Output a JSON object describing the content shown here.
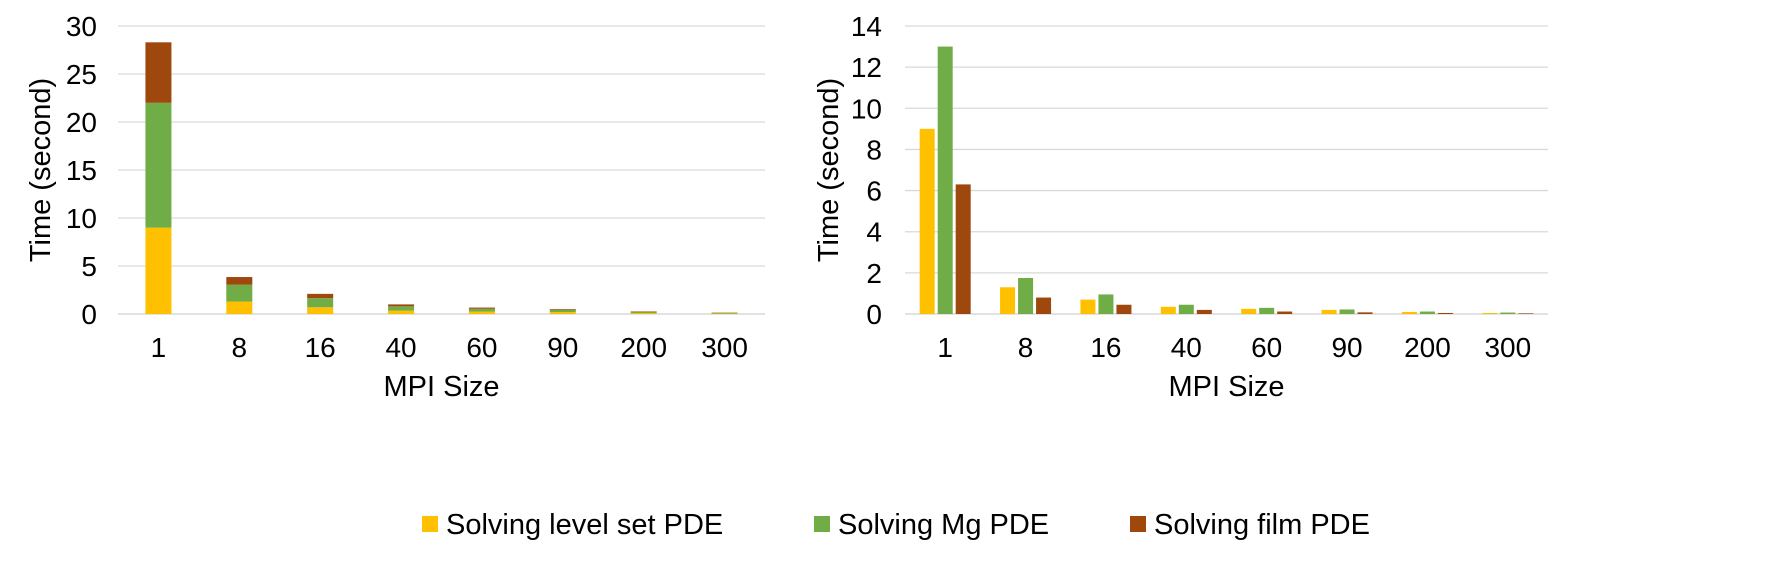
{
  "chart_data": [
    {
      "type": "bar",
      "stacked": true,
      "categories": [
        "1",
        "8",
        "16",
        "40",
        "60",
        "90",
        "200",
        "300"
      ],
      "series": [
        {
          "name": "Solving level set PDE",
          "color": "#FFC000",
          "values": [
            9.0,
            1.3,
            0.7,
            0.35,
            0.25,
            0.2,
            0.1,
            0.05
          ]
        },
        {
          "name": "Solving Mg PDE",
          "color": "#70AD47",
          "values": [
            13.0,
            1.75,
            0.95,
            0.45,
            0.3,
            0.22,
            0.12,
            0.07
          ]
        },
        {
          "name": "Solving film PDE",
          "color": "#9E480E",
          "values": [
            6.3,
            0.8,
            0.45,
            0.2,
            0.12,
            0.08,
            0.05,
            0.03
          ]
        }
      ],
      "xlabel": "MPI Size",
      "ylabel": "Time (second)",
      "ylim": [
        0,
        30
      ],
      "yticks": [
        0,
        5,
        10,
        15,
        20,
        25,
        30
      ],
      "grid": true
    },
    {
      "type": "bar",
      "stacked": false,
      "categories": [
        "1",
        "8",
        "16",
        "40",
        "60",
        "90",
        "200",
        "300"
      ],
      "series": [
        {
          "name": "Solving level set PDE",
          "color": "#FFC000",
          "values": [
            9.0,
            1.3,
            0.7,
            0.35,
            0.25,
            0.2,
            0.1,
            0.05
          ]
        },
        {
          "name": "Solving Mg PDE",
          "color": "#70AD47",
          "values": [
            13.0,
            1.75,
            0.95,
            0.45,
            0.3,
            0.22,
            0.12,
            0.07
          ]
        },
        {
          "name": "Solving film PDE",
          "color": "#9E480E",
          "values": [
            6.3,
            0.8,
            0.45,
            0.2,
            0.12,
            0.08,
            0.05,
            0.03
          ]
        }
      ],
      "xlabel": "MPI Size",
      "ylabel": "Time (second)",
      "ylim": [
        0,
        14
      ],
      "yticks": [
        0,
        2,
        4,
        6,
        8,
        10,
        12,
        14
      ],
      "grid": true
    }
  ],
  "legend": {
    "position": "bottom",
    "items": [
      {
        "label": "Solving level set PDE",
        "color": "#FFC000"
      },
      {
        "label": "Solving Mg PDE",
        "color": "#70AD47"
      },
      {
        "label": "Solving film PDE",
        "color": "#9E480E"
      }
    ]
  }
}
